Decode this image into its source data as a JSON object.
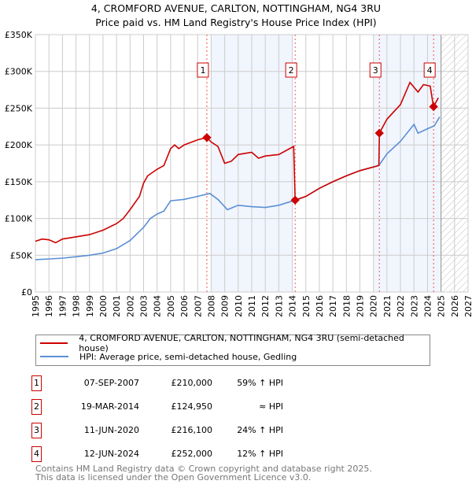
{
  "chart_data": {
    "type": "line",
    "title": "4, CROMFORD AVENUE, CARLTON, NOTTINGHAM, NG4 3RU",
    "subtitle": "Price paid vs. HM Land Registry's House Price Index (HPI)",
    "xlim": [
      1995,
      2027
    ],
    "ylim": [
      0,
      350000
    ],
    "x_ticks": [
      "1995",
      "1996",
      "1997",
      "1998",
      "1999",
      "2000",
      "2001",
      "2002",
      "2003",
      "2004",
      "2005",
      "2006",
      "2007",
      "2008",
      "2009",
      "2010",
      "2011",
      "2012",
      "2013",
      "2014",
      "2015",
      "2016",
      "2017",
      "2018",
      "2019",
      "2020",
      "2021",
      "2022",
      "2023",
      "2024",
      "2025",
      "2026",
      "2027"
    ],
    "y_ticks": [
      {
        "v": 0,
        "label": "£0"
      },
      {
        "v": 50000,
        "label": "£50K"
      },
      {
        "v": 100000,
        "label": "£100K"
      },
      {
        "v": 150000,
        "label": "£150K"
      },
      {
        "v": 200000,
        "label": "£200K"
      },
      {
        "v": 250000,
        "label": "£250K"
      },
      {
        "v": 300000,
        "label": "£300K"
      },
      {
        "v": 350000,
        "label": "£350K"
      }
    ],
    "grid": true,
    "shaded_periods": [
      [
        2008,
        2014
      ],
      [
        2020,
        2025
      ]
    ],
    "forecast_hatch": [
      2025,
      2027
    ],
    "series": [
      {
        "name": "4, CROMFORD AVENUE, CARLTON, NOTTINGHAM, NG4 3RU (semi-detached house)",
        "color": "#cc0000",
        "x": [
          1995,
          1995.5,
          1996,
          1996.5,
          1997,
          1998,
          1999,
          2000,
          2001,
          2001.5,
          2002,
          2002.7,
          2003,
          2003.3,
          2004,
          2004.5,
          2005,
          2005.3,
          2005.6,
          2006,
          2007,
          2007.68,
          2008,
          2008.5,
          2009,
          2009.5,
          2010,
          2011,
          2011.5,
          2012,
          2013,
          2014.1,
          2014.21,
          2015,
          2016,
          2017,
          2018,
          2019,
          2020.4,
          2020.44,
          2021,
          2022,
          2022.7,
          2023.3,
          2023.7,
          2024.2,
          2024.44,
          2024.8
        ],
        "y": [
          69000,
          72000,
          71000,
          67000,
          72000,
          75000,
          78000,
          84000,
          93000,
          100000,
          112000,
          130000,
          148000,
          158000,
          167000,
          172000,
          195000,
          200000,
          195000,
          200000,
          207000,
          210000,
          204000,
          198000,
          175000,
          178000,
          187000,
          190000,
          182000,
          185000,
          187000,
          198000,
          124950,
          130000,
          141000,
          150000,
          158000,
          165000,
          172000,
          216100,
          235000,
          255000,
          285000,
          272000,
          282000,
          280000,
          252000,
          264000
        ]
      },
      {
        "name": "HPI: Average price, semi-detached house, Gedling",
        "color": "#5b8fd4",
        "x": [
          1995,
          1996,
          1997,
          1998,
          1999,
          2000,
          2001,
          2002,
          2003,
          2003.5,
          2004,
          2004.5,
          2005,
          2006,
          2007,
          2007.9,
          2008.5,
          2009.2,
          2010,
          2011,
          2012,
          2013,
          2014.21,
          2015,
          2016,
          2017,
          2018,
          2019,
          2020.4,
          2021,
          2022,
          2023,
          2023.3,
          2024,
          2024.5,
          2024.9
        ],
        "y": [
          44000,
          45000,
          46000,
          48000,
          50000,
          53000,
          59000,
          70000,
          88000,
          100000,
          106000,
          110000,
          124000,
          126000,
          130000,
          134000,
          126000,
          112000,
          118000,
          116000,
          115000,
          118000,
          125000,
          130000,
          141000,
          150000,
          158000,
          165000,
          172000,
          188000,
          205000,
          228000,
          216000,
          222000,
          226000,
          238000
        ]
      }
    ],
    "sales": [
      {
        "n": "1",
        "x": 2007.68,
        "date": "07-SEP-2007",
        "price_value": 210000,
        "price": "£210,000",
        "hpi": "59% ↑ HPI"
      },
      {
        "n": "2",
        "x": 2014.21,
        "date": "19-MAR-2014",
        "price_value": 124950,
        "price": "£124,950",
        "hpi": "≈ HPI"
      },
      {
        "n": "3",
        "x": 2020.44,
        "date": "11-JUN-2020",
        "price_value": 216100,
        "price": "£216,100",
        "hpi": "24% ↑ HPI"
      },
      {
        "n": "4",
        "x": 2024.45,
        "date": "12-JUN-2024",
        "price_value": 252000,
        "price": "£252,000",
        "hpi": "12% ↑ HPI"
      }
    ]
  },
  "footer": {
    "line1": "Contains HM Land Registry data © Crown copyright and database right 2025.",
    "line2": "This data is licensed under the Open Government Licence v3.0."
  }
}
